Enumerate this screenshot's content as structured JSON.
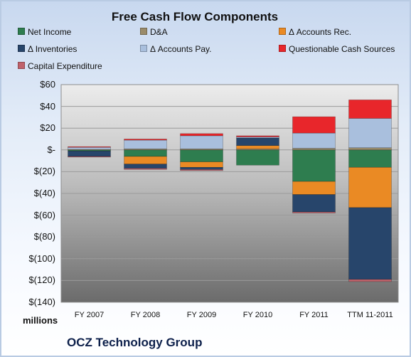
{
  "chart_data": {
    "type": "bar",
    "stacked": true,
    "title": "Free Cash Flow Components",
    "units_label": "millions",
    "company": "OCZ Technology Group",
    "categories": [
      "FY 2007",
      "FY 2008",
      "FY 2009",
      "FY 2010",
      "FY 2011",
      "TTM 11-2011"
    ],
    "ylim": [
      -140,
      60
    ],
    "yticks": [
      60,
      40,
      20,
      0,
      -20,
      -40,
      -60,
      -80,
      -100,
      -120,
      -140
    ],
    "ytick_labels": [
      "$60",
      "$40",
      "$20",
      "$-",
      "$(20)",
      "$(40)",
      "$(60)",
      "$(80)",
      "$(100)",
      "$(120)",
      "$(140)"
    ],
    "grid": true,
    "legend_position": "top",
    "series": [
      {
        "name": "Net Income",
        "color": "#2e7d4f",
        "values": [
          -1,
          -6,
          -11,
          -14,
          -29,
          -16
        ]
      },
      {
        "name": "D&A",
        "color": "#9a8b6a",
        "values": [
          0.5,
          1,
          1,
          1,
          1.5,
          2
        ]
      },
      {
        "name": "Δ Accounts Rec.",
        "color": "#ea8a24",
        "values": [
          0,
          -7,
          -5,
          3,
          -12,
          -37
        ]
      },
      {
        "name": "Δ Inventories",
        "color": "#27456b",
        "values": [
          -5,
          -4,
          -2,
          7,
          -16,
          -66
        ]
      },
      {
        "name": "Δ Accounts Pay.",
        "color": "#a9bfdd",
        "values": [
          2,
          8,
          12,
          1,
          14,
          27
        ]
      },
      {
        "name": "Questionable Cash Sources",
        "color": "#e8262b",
        "values": [
          0.5,
          1,
          2,
          1,
          15,
          17
        ]
      },
      {
        "name": "Capital Expenditure",
        "color": "#c0626b",
        "values": [
          -0.5,
          -1,
          -1,
          0,
          -1,
          -2
        ]
      }
    ]
  }
}
